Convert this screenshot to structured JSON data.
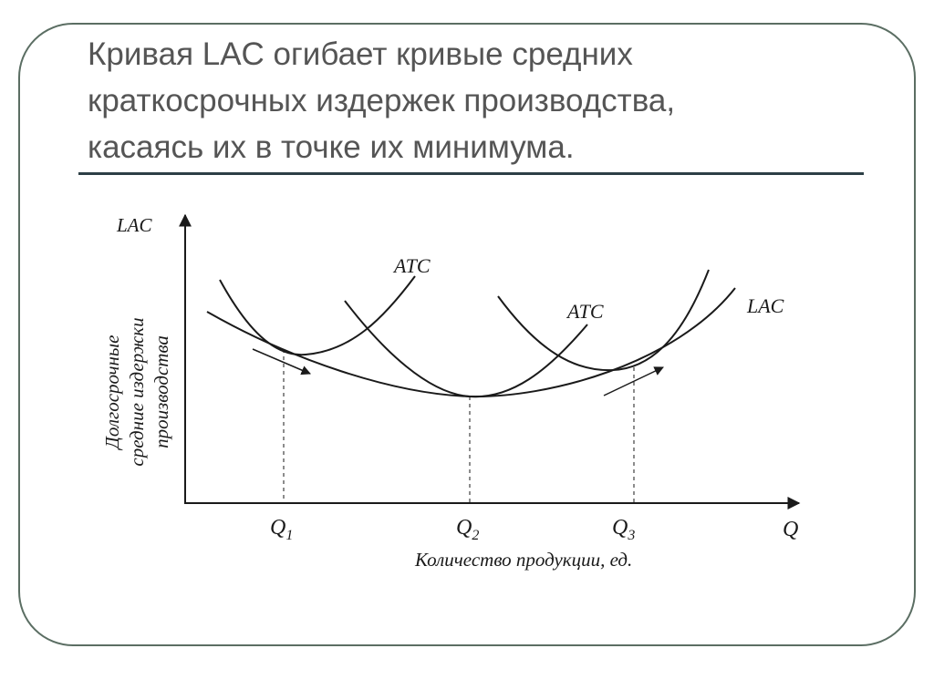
{
  "slide": {
    "title_lines": [
      "Кривая LAC огибает кривые средних",
      "краткосрочных издержек производства,",
      "касаясь их в точке их минимума."
    ]
  },
  "chart_data": {
    "type": "line",
    "y_axis_tick_label": "LAC",
    "ylabel_lines": [
      "Долгосрочные",
      "средние издержки",
      "производства"
    ],
    "x_axis_tick_label": "Q",
    "xlabel": "Количество продукции, ед.",
    "x_marks": [
      {
        "label": "Q",
        "sub": "1"
      },
      {
        "label": "Q",
        "sub": "2"
      },
      {
        "label": "Q",
        "sub": "3"
      }
    ],
    "curve_labels": {
      "atc_1": "ATC",
      "atc_2": "ATC",
      "lac": "LAC"
    },
    "grid": false,
    "legend": "none"
  }
}
